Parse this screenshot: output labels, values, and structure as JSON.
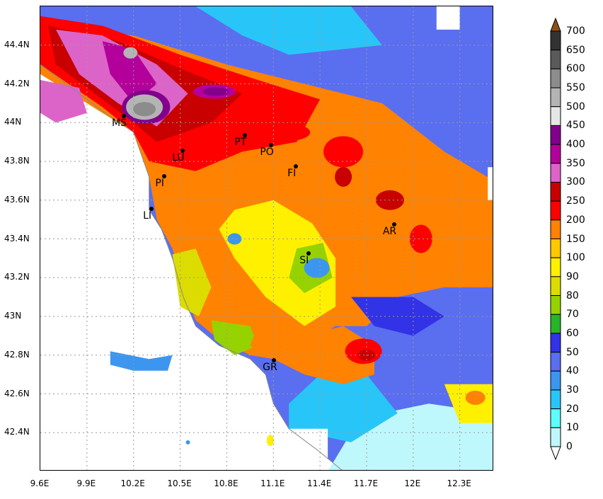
{
  "map": {
    "lat_labels": [
      "44.4N",
      "44.2N",
      "44N",
      "43.8N",
      "43.6N",
      "43.4N",
      "43.2N",
      "43N",
      "42.8N",
      "42.6N",
      "42.4N"
    ],
    "lon_labels": [
      "9.6E",
      "9.9E",
      "10.2E",
      "10.5E",
      "10.8E",
      "11.1E",
      "11.4E",
      "11.7E",
      "12E",
      "12.3E"
    ],
    "lat_values": [
      44.4,
      44.2,
      44.0,
      43.8,
      43.6,
      43.4,
      43.2,
      43.0,
      42.8,
      42.6,
      42.4
    ],
    "lon_values": [
      9.6,
      9.9,
      10.2,
      10.5,
      10.8,
      11.1,
      11.4,
      11.7,
      12.0,
      12.3
    ],
    "extent": {
      "lon_min": 9.6,
      "lon_max": 12.52,
      "lat_min": 42.2,
      "lat_max": 44.6
    },
    "cities": [
      {
        "code": "MS",
        "lon": 10.14,
        "lat": 44.03
      },
      {
        "code": "LU",
        "lon": 10.52,
        "lat": 43.85
      },
      {
        "code": "PT",
        "lon": 10.92,
        "lat": 43.93
      },
      {
        "code": "PO",
        "lon": 11.09,
        "lat": 43.88
      },
      {
        "code": "FI",
        "lon": 11.25,
        "lat": 43.77
      },
      {
        "code": "PI",
        "lon": 10.4,
        "lat": 43.72
      },
      {
        "code": "LI",
        "lon": 10.32,
        "lat": 43.55
      },
      {
        "code": "AR",
        "lon": 11.88,
        "lat": 43.47
      },
      {
        "code": "SI",
        "lon": 11.33,
        "lat": 43.32
      },
      {
        "code": "GR",
        "lon": 11.11,
        "lat": 42.77
      }
    ]
  },
  "colorbar": {
    "labels": [
      "0",
      "10",
      "20",
      "30",
      "40",
      "50",
      "60",
      "70",
      "80",
      "90",
      "100",
      "150",
      "200",
      "250",
      "300",
      "350",
      "400",
      "450",
      "500",
      "550",
      "600",
      "650",
      "700"
    ],
    "colors": [
      "#bff8fc",
      "#5ffcfc",
      "#28c6f8",
      "#3c96f0",
      "#5a6ef0",
      "#3232e6",
      "#28b428",
      "#96d200",
      "#dcdc00",
      "#fff000",
      "#ffc800",
      "#ff8200",
      "#ff0000",
      "#c80000",
      "#dc64c8",
      "#b4009b",
      "#82008c",
      "#e6e6e6",
      "#b4b4b4",
      "#8c8c8c",
      "#5a5a5a",
      "#323232",
      "#8c5014"
    ]
  }
}
